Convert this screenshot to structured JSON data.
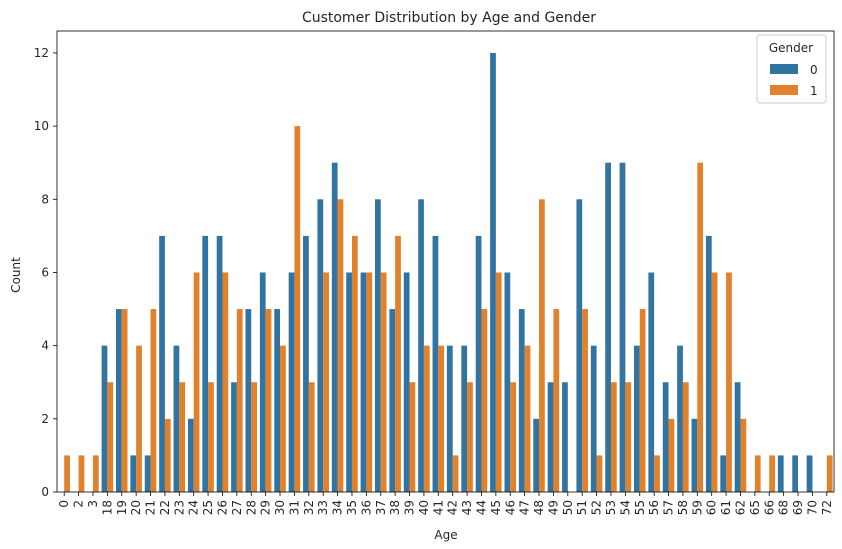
{
  "chart_data": {
    "type": "bar",
    "title": "Customer Distribution by Age and Gender",
    "xlabel": "Age",
    "ylabel": "Count",
    "ylim": [
      0,
      12.6
    ],
    "yticks": [
      0,
      2,
      4,
      6,
      8,
      10,
      12
    ],
    "grid": false,
    "legend_placement": "top-right",
    "legend_title": "Gender",
    "categories": [
      "0",
      "2",
      "3",
      "18",
      "19",
      "20",
      "21",
      "22",
      "23",
      "24",
      "25",
      "26",
      "27",
      "28",
      "29",
      "30",
      "31",
      "32",
      "33",
      "34",
      "35",
      "36",
      "37",
      "38",
      "39",
      "40",
      "41",
      "42",
      "43",
      "44",
      "45",
      "46",
      "47",
      "48",
      "49",
      "50",
      "51",
      "52",
      "53",
      "54",
      "55",
      "56",
      "57",
      "58",
      "59",
      "60",
      "61",
      "62",
      "65",
      "66",
      "68",
      "69",
      "70",
      "72"
    ],
    "series": [
      {
        "name": "0",
        "color": "#3274a1",
        "values": [
          0,
          0,
          0,
          4,
          5,
          1,
          1,
          7,
          4,
          2,
          7,
          7,
          3,
          5,
          6,
          5,
          6,
          7,
          8,
          9,
          6,
          6,
          8,
          5,
          6,
          8,
          7,
          4,
          4,
          7,
          12,
          6,
          5,
          2,
          3,
          3,
          8,
          4,
          9,
          9,
          4,
          6,
          3,
          4,
          2,
          7,
          1,
          3,
          0,
          0,
          1,
          1,
          1,
          0
        ]
      },
      {
        "name": "1",
        "color": "#e1812c",
        "values": [
          1,
          1,
          1,
          3,
          5,
          4,
          5,
          2,
          3,
          6,
          3,
          6,
          5,
          3,
          5,
          4,
          10,
          3,
          6,
          8,
          7,
          6,
          6,
          7,
          3,
          4,
          4,
          1,
          3,
          5,
          6,
          3,
          4,
          8,
          5,
          0,
          5,
          1,
          3,
          3,
          5,
          1,
          2,
          3,
          9,
          6,
          6,
          2,
          1,
          1,
          0,
          0,
          0,
          1
        ]
      }
    ]
  }
}
